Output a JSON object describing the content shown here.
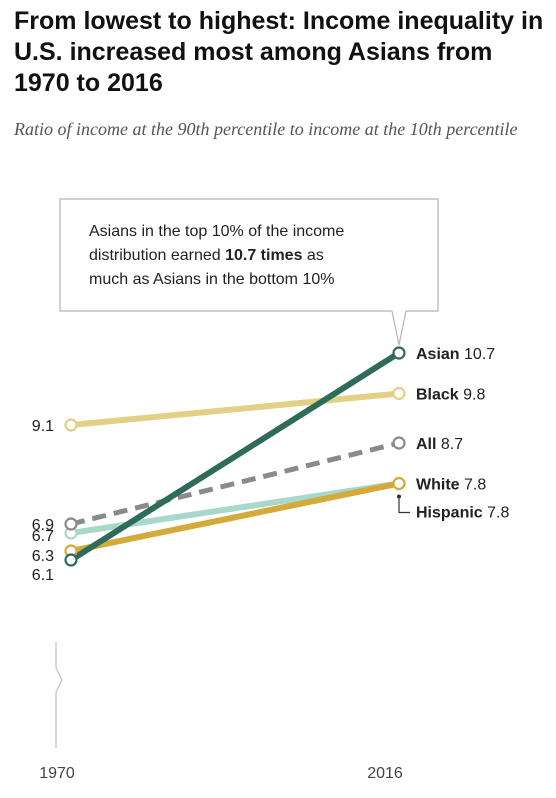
{
  "title": "From lowest to highest: Income inequality in U.S. increased most among Asians from 1970 to 2016",
  "subtitle": "Ratio of income at the 90th percentile to income at the 10th percentile",
  "callout": {
    "line1": "Asians in the top 10% of the income",
    "line2_pre": "distribution earned ",
    "line2_bold": "10.7 times",
    "line2_post": " as",
    "line3": "much as Asians in the bottom 10%"
  },
  "chart_data": {
    "type": "line",
    "x": [
      "1970",
      "2016"
    ],
    "ylim": [
      5,
      11.5
    ],
    "series": [
      {
        "name": "Black",
        "values": [
          9.1,
          9.8
        ],
        "start_label": "9.1",
        "end_label": "9.8",
        "color": "#e4cf86",
        "dashed": false
      },
      {
        "name": "Hispanic",
        "values": [
          6.7,
          7.8
        ],
        "start_label": "6.7",
        "end_label": "7.8",
        "color": "#a8d8cc",
        "dashed": false
      },
      {
        "name": "White",
        "values": [
          6.3,
          7.8
        ],
        "start_label": "6.3",
        "end_label": "7.8",
        "color": "#d4aa3a",
        "dashed": false
      },
      {
        "name": "All",
        "values": [
          6.9,
          8.7
        ],
        "start_label": "6.9",
        "end_label": "8.7",
        "color": "#8a8a8a",
        "dashed": true
      },
      {
        "name": "Asian",
        "values": [
          6.1,
          10.7
        ],
        "start_label": "6.1",
        "end_label": "10.7",
        "color": "#2f6b5a",
        "dashed": false
      }
    ]
  }
}
